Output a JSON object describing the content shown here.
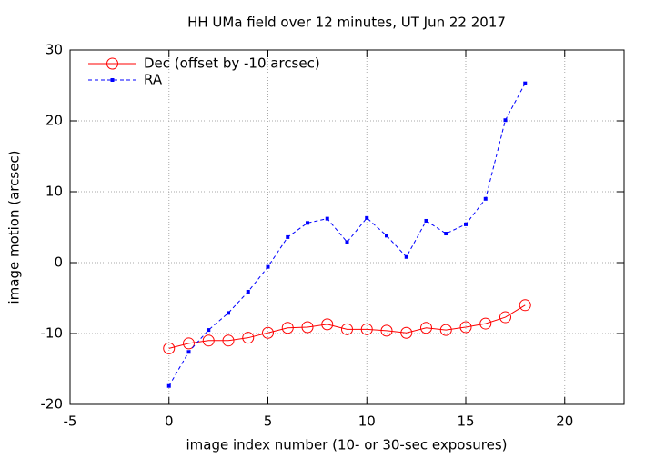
{
  "chart_data": {
    "type": "line",
    "title": "HH UMa field over 12 minutes, UT Jun 22 2017",
    "x_label": "image index number (10- or 30-sec exposures)",
    "y_label": "image motion (arcsec)",
    "x": [
      0,
      1,
      2,
      3,
      4,
      5,
      6,
      7,
      8,
      9,
      10,
      11,
      12,
      13,
      14,
      15,
      16,
      17,
      18
    ],
    "series": [
      {
        "name": "Dec (offset by -10 arcsec)",
        "color": "#ff0000",
        "marker": "circle",
        "dashed": false,
        "values": [
          -12.1,
          -11.4,
          -11.0,
          -11.0,
          -10.6,
          -9.9,
          -9.2,
          -9.1,
          -8.7,
          -9.4,
          -9.4,
          -9.6,
          -9.9,
          -9.2,
          -9.5,
          -9.1,
          -8.6,
          -7.7,
          -6.0
        ]
      },
      {
        "name": "RA",
        "color": "#0000ff",
        "marker": "square",
        "dashed": true,
        "values": [
          -17.4,
          -12.6,
          -9.5,
          -7.1,
          -4.1,
          -0.6,
          3.6,
          5.6,
          6.2,
          2.9,
          6.3,
          3.8,
          0.8,
          5.9,
          4.1,
          5.4,
          9.0,
          20.1,
          25.3
        ]
      }
    ],
    "xlim": [
      -5,
      23
    ],
    "ylim": [
      -20,
      30
    ],
    "xticks": [
      -5,
      0,
      5,
      10,
      15,
      20
    ],
    "yticks": [
      -20,
      -10,
      0,
      10,
      20,
      30
    ],
    "grid": true,
    "legend": "top-left"
  }
}
